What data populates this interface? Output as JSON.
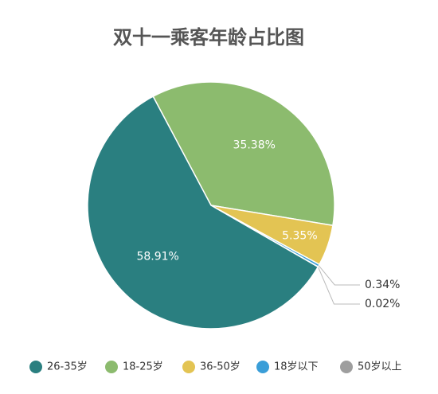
{
  "chart_data": {
    "type": "pie",
    "title": "双十一乘客年龄占比图",
    "categories": [
      "18-25岁",
      "36-50岁",
      "18岁以下",
      "50岁以上",
      "26-35岁"
    ],
    "values": [
      35.38,
      5.35,
      0.34,
      0.02,
      58.91
    ],
    "value_labels": [
      "35.38%",
      "5.35%",
      "0.34%",
      "0.02%",
      "58.91%"
    ],
    "colors": [
      "#8cbb6e",
      "#e3c453",
      "#3a9ed8",
      "#9e9e9e",
      "#2a7f80"
    ],
    "legend_order": [
      4,
      0,
      1,
      2,
      3
    ],
    "legend": "bottom"
  }
}
